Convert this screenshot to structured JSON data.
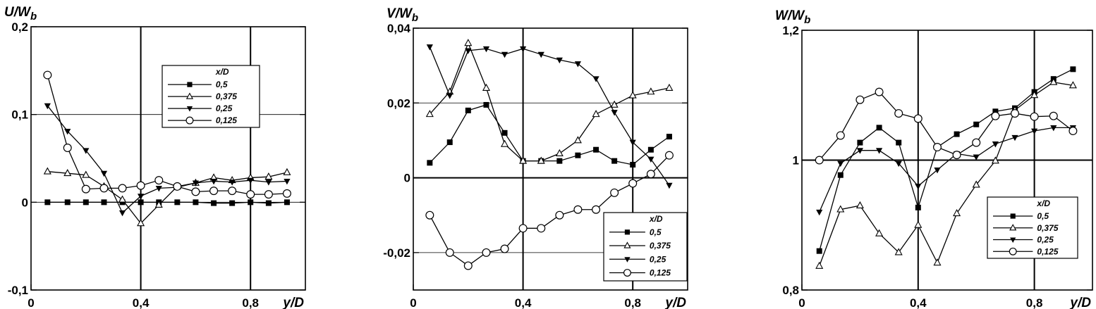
{
  "chart_data": [
    {
      "type": "line",
      "ylabel": "U/W_b",
      "ylabel_main": "U/W",
      "ylabel_sub": "b",
      "xlabel": "y/D",
      "xlim": [
        0,
        1.0
      ],
      "ylim": [
        -0.1,
        0.2
      ],
      "x_ticks": [
        "0",
        "0,4",
        "0,8"
      ],
      "x_tick_values": [
        0,
        0.4,
        0.8
      ],
      "y_ticks": [
        "-0,1",
        "0",
        "0,1",
        "0,2"
      ],
      "y_tick_values": [
        -0.1,
        0,
        0.1,
        0.2
      ],
      "thick_vlines": [
        0.4,
        0.8
      ],
      "thick_hlines": [],
      "thin_hlines": [
        0.1,
        0
      ],
      "legend": {
        "title": "x/D",
        "position": "upper-center"
      },
      "series": [
        {
          "name": "0,5",
          "marker": "square-filled",
          "x": [
            0.06,
            0.133,
            0.2,
            0.266,
            0.333,
            0.4,
            0.466,
            0.533,
            0.6,
            0.666,
            0.733,
            0.8,
            0.866,
            0.933
          ],
          "y": [
            0,
            0,
            0,
            0,
            0,
            0,
            0,
            0,
            0,
            -0.001,
            -0.001,
            0,
            -0.001,
            0
          ]
        },
        {
          "name": "0,375",
          "marker": "triangle-open",
          "x": [
            0.06,
            0.133,
            0.2,
            0.266,
            0.333,
            0.4,
            0.466,
            0.533,
            0.6,
            0.666,
            0.733,
            0.8,
            0.866,
            0.933
          ],
          "y": [
            0.035,
            0.033,
            0.031,
            0.018,
            0.003,
            -0.024,
            -0.003,
            0.018,
            0.022,
            0.028,
            0.025,
            0.028,
            0.029,
            0.034
          ]
        },
        {
          "name": "0,25",
          "marker": "triangle-down-filled",
          "x": [
            0.06,
            0.133,
            0.2,
            0.266,
            0.333,
            0.4,
            0.466,
            0.533,
            0.6,
            0.666,
            0.733,
            0.8,
            0.866,
            0.933
          ],
          "y": [
            0.11,
            0.081,
            0.059,
            0.033,
            -0.012,
            0.007,
            0.016,
            0.017,
            0.022,
            0.024,
            0.023,
            0.025,
            0.023,
            0.024
          ]
        },
        {
          "name": "0,125",
          "marker": "circle-open",
          "x": [
            0.06,
            0.133,
            0.2,
            0.266,
            0.333,
            0.4,
            0.466,
            0.533,
            0.6,
            0.666,
            0.733,
            0.8,
            0.866,
            0.933
          ],
          "y": [
            0.145,
            0.062,
            0.015,
            0.016,
            0.016,
            0.019,
            0.025,
            0.018,
            0.012,
            0.013,
            0.013,
            0.009,
            0.009,
            0.01
          ]
        }
      ]
    },
    {
      "type": "line",
      "ylabel": "V/W_b",
      "ylabel_main": "V/W",
      "ylabel_sub": "b",
      "xlabel": "y/D",
      "xlim": [
        0,
        1.0
      ],
      "ylim": [
        -0.03,
        0.04
      ],
      "x_ticks": [
        "0",
        "0,4",
        "0,8"
      ],
      "x_tick_values": [
        0,
        0.4,
        0.8
      ],
      "y_ticks": [
        "-0,02",
        "0",
        "0,02",
        "0,04"
      ],
      "y_tick_values": [
        -0.02,
        0,
        0.02,
        0.04
      ],
      "thick_vlines": [
        0.4,
        0.8
      ],
      "thick_hlines": [
        0
      ],
      "thin_hlines": [
        0.02,
        -0.02
      ],
      "legend": {
        "title": "x/D",
        "position": "lower-right"
      },
      "series": [
        {
          "name": "0,5",
          "marker": "square-filled",
          "x": [
            0.06,
            0.133,
            0.2,
            0.266,
            0.333,
            0.4,
            0.466,
            0.533,
            0.6,
            0.666,
            0.733,
            0.8,
            0.866,
            0.933
          ],
          "y": [
            0.004,
            0.0095,
            0.018,
            0.0195,
            0.012,
            0.0045,
            0.0045,
            0.0045,
            0.006,
            0.0075,
            0.0045,
            0.0035,
            0.0075,
            0.011
          ]
        },
        {
          "name": "0,375",
          "marker": "triangle-open",
          "x": [
            0.06,
            0.133,
            0.2,
            0.266,
            0.333,
            0.4,
            0.466,
            0.533,
            0.6,
            0.666,
            0.733,
            0.8,
            0.866,
            0.933
          ],
          "y": [
            0.017,
            0.023,
            0.036,
            0.024,
            0.009,
            0.0045,
            0.0045,
            0.0065,
            0.01,
            0.017,
            0.0195,
            0.022,
            0.023,
            0.024
          ]
        },
        {
          "name": "0,25",
          "marker": "triangle-down-filled",
          "x": [
            0.06,
            0.133,
            0.2,
            0.266,
            0.333,
            0.4,
            0.466,
            0.533,
            0.6,
            0.666,
            0.733,
            0.8,
            0.866,
            0.933
          ],
          "y": [
            0.035,
            0.022,
            0.034,
            0.0345,
            0.033,
            0.0345,
            0.033,
            0.0315,
            0.0305,
            0.0265,
            0.0175,
            0.0095,
            0.005,
            -0.002
          ]
        },
        {
          "name": "0,125",
          "marker": "circle-open",
          "x": [
            0.06,
            0.133,
            0.2,
            0.266,
            0.333,
            0.4,
            0.466,
            0.533,
            0.6,
            0.666,
            0.733,
            0.8,
            0.866,
            0.933
          ],
          "y": [
            -0.01,
            -0.02,
            -0.0235,
            -0.02,
            -0.019,
            -0.0135,
            -0.0135,
            -0.01,
            -0.0085,
            -0.0085,
            -0.004,
            -0.0015,
            0.001,
            0.006
          ]
        }
      ]
    },
    {
      "type": "line",
      "ylabel": "W/W_b",
      "ylabel_main": "W/W",
      "ylabel_sub": "b",
      "xlabel": "y/D",
      "xlim": [
        0,
        1.0
      ],
      "ylim": [
        0.8,
        1.2
      ],
      "x_ticks": [
        "0",
        "0,4",
        "0,8"
      ],
      "x_tick_values": [
        0,
        0.4,
        0.8
      ],
      "y_ticks": [
        "0,8",
        "1",
        "1,2"
      ],
      "y_tick_values": [
        0.8,
        1.0,
        1.2
      ],
      "thick_vlines": [
        0.4,
        0.8
      ],
      "thick_hlines": [
        1.0
      ],
      "thin_hlines": [],
      "legend": {
        "title": "x/D",
        "position": "lower-right"
      },
      "series": [
        {
          "name": "0,5",
          "marker": "square-filled",
          "x": [
            0.06,
            0.133,
            0.2,
            0.266,
            0.333,
            0.4,
            0.466,
            0.533,
            0.6,
            0.666,
            0.733,
            0.8,
            0.866,
            0.933
          ],
          "y": [
            0.86,
            0.977,
            1.027,
            1.05,
            1.027,
            0.927,
            1.02,
            1.04,
            1.055,
            1.075,
            1.08,
            1.105,
            1.125,
            1.14
          ]
        },
        {
          "name": "0,375",
          "marker": "triangle-open",
          "x": [
            0.06,
            0.133,
            0.2,
            0.266,
            0.333,
            0.4,
            0.466,
            0.533,
            0.6,
            0.666,
            0.733,
            0.8,
            0.866,
            0.933
          ],
          "y": [
            0.837,
            0.924,
            0.93,
            0.887,
            0.858,
            0.9,
            0.842,
            0.918,
            0.962,
            0.999,
            1.077,
            1.1,
            1.12,
            1.115
          ]
        },
        {
          "name": "0,25",
          "marker": "triangle-down-filled",
          "x": [
            0.06,
            0.133,
            0.2,
            0.266,
            0.333,
            0.4,
            0.466,
            0.533,
            0.6,
            0.666,
            0.733,
            0.8,
            0.866,
            0.933
          ],
          "y": [
            0.92,
            0.995,
            1.015,
            1.015,
            0.995,
            0.96,
            0.985,
            1.01,
            1.005,
            1.025,
            1.035,
            1.045,
            1.05,
            1.05
          ]
        },
        {
          "name": "0,125",
          "marker": "circle-open",
          "x": [
            0.06,
            0.133,
            0.2,
            0.266,
            0.333,
            0.4,
            0.466,
            0.533,
            0.6,
            0.666,
            0.733,
            0.8,
            0.866,
            0.933
          ],
          "y": [
            1.0,
            1.038,
            1.093,
            1.105,
            1.072,
            1.064,
            1.02,
            1.008,
            1.027,
            1.068,
            1.072,
            1.067,
            1.068,
            1.045
          ]
        }
      ]
    }
  ]
}
